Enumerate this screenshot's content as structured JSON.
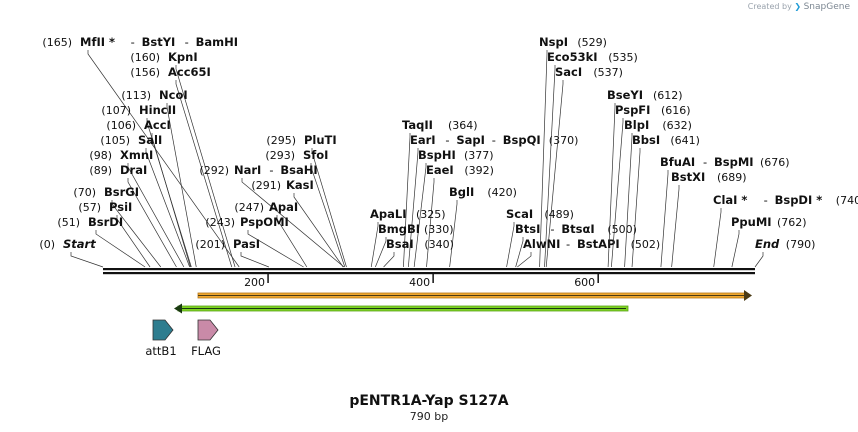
{
  "credit": {
    "created_by": "Created by",
    "brand": "SnapGene"
  },
  "plasmid": {
    "name": "pENTR1A-Yap S127A",
    "length_label": "790 bp"
  },
  "total_bp": 790,
  "colors": {
    "feature_orange": "#f0a830",
    "feature_green": "#7ed321",
    "attB1": "#2e7d8f",
    "flag": "#c98aa8"
  },
  "ticks": [
    {
      "bp": 200,
      "label": "200"
    },
    {
      "bp": 400,
      "label": "400"
    },
    {
      "bp": 600,
      "label": "600"
    }
  ],
  "sites": [
    {
      "pos": "(165)",
      "names": [
        "MfII *",
        "BstYI",
        "BamHI"
      ],
      "bp": 165
    },
    {
      "pos": "(160)",
      "names": [
        "KpnI"
      ],
      "bp": 160
    },
    {
      "pos": "(156)",
      "names": [
        "Acc65I"
      ],
      "bp": 156
    },
    {
      "pos": "(113)",
      "names": [
        "NcoI"
      ],
      "bp": 113
    },
    {
      "pos": "(107)",
      "names": [
        "HincII"
      ],
      "bp": 107
    },
    {
      "pos": "(106)",
      "names": [
        "AccI"
      ],
      "bp": 106
    },
    {
      "pos": "(105)",
      "names": [
        "SalI"
      ],
      "bp": 105
    },
    {
      "pos": "(98)",
      "names": [
        "XmnI"
      ],
      "bp": 98
    },
    {
      "pos": "(89)",
      "names": [
        "DraI"
      ],
      "bp": 89
    },
    {
      "pos": "(70)",
      "names": [
        "BsrGI"
      ],
      "bp": 70
    },
    {
      "pos": "(57)",
      "names": [
        "PsiI"
      ],
      "bp": 57
    },
    {
      "pos": "(51)",
      "names": [
        "BsrDI"
      ],
      "bp": 51
    },
    {
      "pos": "(0)",
      "names": [
        "Start"
      ],
      "bp": 0,
      "italic": true
    },
    {
      "pos": "(292)",
      "names": [
        "NarI",
        "BsaHI"
      ],
      "bp": 292
    },
    {
      "pos": "(291)",
      "names": [
        "KasI"
      ],
      "bp": 291
    },
    {
      "pos": "(295)",
      "names": [
        "PluTI"
      ],
      "bp": 295
    },
    {
      "pos": "(293)",
      "names": [
        "SfoI"
      ],
      "bp": 293
    },
    {
      "pos": "(247)",
      "names": [
        "ApaI"
      ],
      "bp": 247
    },
    {
      "pos": "(243)",
      "names": [
        "PspOMI"
      ],
      "bp": 243
    },
    {
      "pos": "(201)",
      "names": [
        "PasI"
      ],
      "bp": 201
    },
    {
      "pos": "(364)",
      "names": [
        "TaqII"
      ],
      "bp": 364
    },
    {
      "pos": "(370)",
      "names": [
        "EarI",
        "SapI",
        "BspQI"
      ],
      "bp": 370
    },
    {
      "pos": "(377)",
      "names": [
        "BspHI"
      ],
      "bp": 377
    },
    {
      "pos": "(392)",
      "names": [
        "EaeI"
      ],
      "bp": 392
    },
    {
      "pos": "(420)",
      "names": [
        "BglI"
      ],
      "bp": 420
    },
    {
      "pos": "(325)",
      "names": [
        "ApaLI"
      ],
      "bp": 325
    },
    {
      "pos": "(330)",
      "names": [
        "BmgBI"
      ],
      "bp": 330
    },
    {
      "pos": "(340)",
      "names": [
        "BsaI"
      ],
      "bp": 340
    },
    {
      "pos": "(529)",
      "names": [
        "NspI"
      ],
      "bp": 529
    },
    {
      "pos": "(535)",
      "names": [
        "Eco53kI"
      ],
      "bp": 535
    },
    {
      "pos": "(537)",
      "names": [
        "SacI"
      ],
      "bp": 537
    },
    {
      "pos": "(489)",
      "names": [
        "ScaI"
      ],
      "bp": 489
    },
    {
      "pos": "(500)",
      "names": [
        "BtsI",
        "BtsαI"
      ],
      "bp": 500
    },
    {
      "pos": "(502)",
      "names": [
        "AlwNI",
        "BstAPI"
      ],
      "bp": 502
    },
    {
      "pos": "(612)",
      "names": [
        "BseYI"
      ],
      "bp": 612
    },
    {
      "pos": "(616)",
      "names": [
        "PspFI"
      ],
      "bp": 616
    },
    {
      "pos": "(632)",
      "names": [
        "BlpI"
      ],
      "bp": 632
    },
    {
      "pos": "(641)",
      "names": [
        "BbsI"
      ],
      "bp": 641
    },
    {
      "pos": "(676)",
      "names": [
        "BfuAI",
        "BspMI"
      ],
      "bp": 676
    },
    {
      "pos": "(689)",
      "names": [
        "BstXI"
      ],
      "bp": 689
    },
    {
      "pos": "(740)",
      "names": [
        "ClaI *",
        "BspDI *"
      ],
      "bp": 740
    },
    {
      "pos": "(762)",
      "names": [
        "PpuMI"
      ],
      "bp": 762
    },
    {
      "pos": "(790)",
      "names": [
        "End"
      ],
      "bp": 790,
      "italic": true
    }
  ],
  "features": [
    {
      "name": "attB1",
      "color": "#2e7d8f"
    },
    {
      "name": "FLAG",
      "color": "#c98aa8"
    }
  ]
}
